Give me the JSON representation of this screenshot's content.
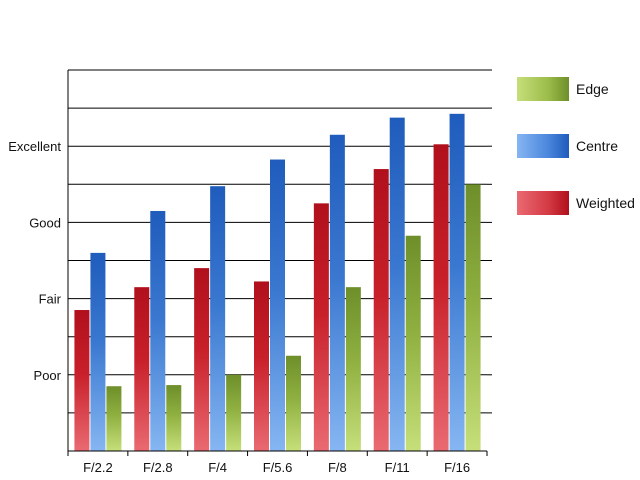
{
  "chart_data": {
    "type": "bar",
    "title": "",
    "xlabel": "",
    "ylabel": "",
    "categories": [
      "F/2.2",
      "F/2.8",
      "F/4",
      "F/5.6",
      "F/8",
      "F/11",
      "F/16"
    ],
    "y_tick_labels": [
      {
        "value": 2,
        "label": "Poor"
      },
      {
        "value": 4,
        "label": "Fair"
      },
      {
        "value": 6,
        "label": "Good"
      },
      {
        "value": 8,
        "label": "Excellent"
      }
    ],
    "ylim": [
      0,
      10
    ],
    "grid": true,
    "legend_position": "right",
    "series": [
      {
        "name": "Weighted",
        "color": "#c8202a",
        "values": [
          3.7,
          4.3,
          4.8,
          4.45,
          6.5,
          7.4,
          8.05
        ]
      },
      {
        "name": "Centre",
        "color": "#3a78d0",
        "values": [
          5.2,
          6.3,
          6.95,
          7.65,
          8.3,
          8.75,
          8.85
        ]
      },
      {
        "name": "Edge",
        "color": "#8fb040",
        "values": [
          1.7,
          1.73,
          2.0,
          2.5,
          4.3,
          5.65,
          7.0
        ]
      }
    ],
    "legend_order": [
      "Edge",
      "Centre",
      "Weighted"
    ]
  }
}
